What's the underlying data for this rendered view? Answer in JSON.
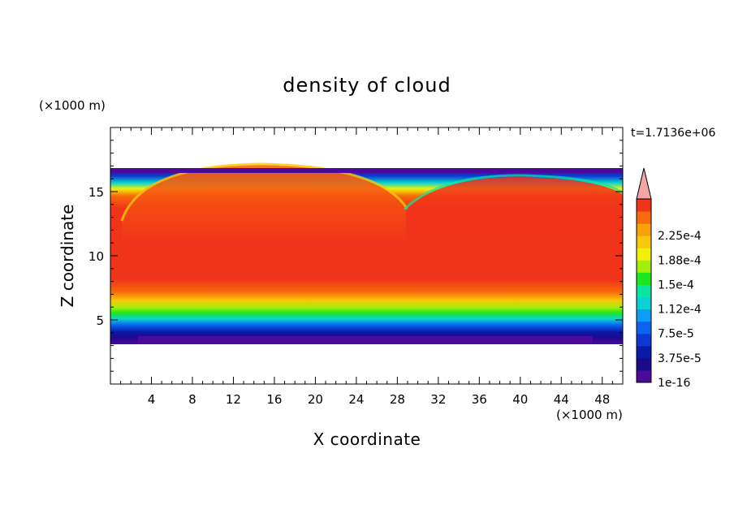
{
  "chart_data": {
    "type": "heatmap",
    "title": "density of cloud",
    "xlabel": "X coordinate",
    "ylabel": "Z coordinate",
    "x_unit": "(×1000 m)",
    "y_unit": "(×1000 m)",
    "time_label": "t=1.7136e+06",
    "xlim": [
      0,
      50
    ],
    "ylim": [
      0,
      20
    ],
    "x_ticks": [
      4,
      8,
      12,
      16,
      20,
      24,
      28,
      32,
      36,
      40,
      44,
      48
    ],
    "y_ticks": [
      5,
      10,
      15
    ],
    "colorbar": {
      "levels": [
        {
          "value": "1e-16",
          "color": "#4a0a9a"
        },
        {
          "value": "",
          "color": "#1c0a8c"
        },
        {
          "value": "3.75e-5",
          "color": "#0a1aa8"
        },
        {
          "value": "",
          "color": "#0a3ad0"
        },
        {
          "value": "7.5e-5",
          "color": "#0a64f0"
        },
        {
          "value": "",
          "color": "#0a9ef6"
        },
        {
          "value": "1.12e-4",
          "color": "#0ad2d2"
        },
        {
          "value": "",
          "color": "#0ae6a0"
        },
        {
          "value": "1.5e-4",
          "color": "#1ee61e"
        },
        {
          "value": "",
          "color": "#a0f00a"
        },
        {
          "value": "1.88e-4",
          "color": "#f0f00a"
        },
        {
          "value": "",
          "color": "#f8c80a"
        },
        {
          "value": "2.25e-4",
          "color": "#f8a00a"
        },
        {
          "value": "",
          "color": "#f86a0a"
        },
        {
          "value": "",
          "color": "#f0341a"
        }
      ],
      "overflow_color": "#f4a6a6"
    }
  }
}
